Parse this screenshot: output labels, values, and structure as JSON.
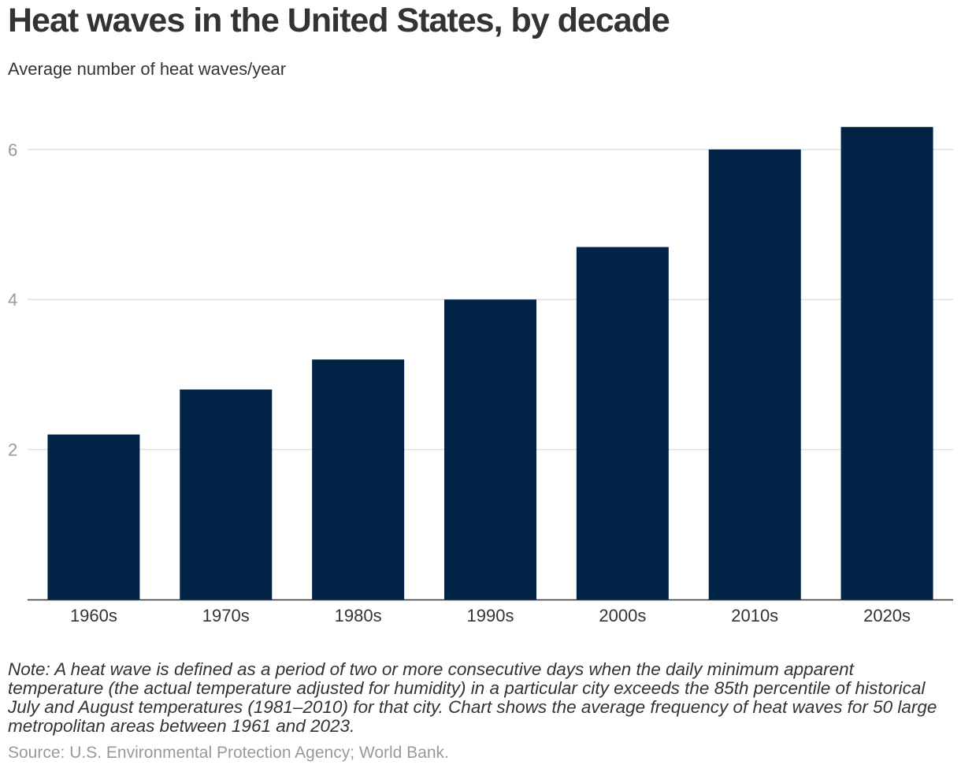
{
  "title": "Heat waves in the United States, by decade",
  "subtitle": "Average number of heat waves/year",
  "note": "Note: A heat wave is defined as a period of two or more consecutive days when the daily minimum apparent temperature (the actual temperature adjusted for humidity) in a particular city exceeds the 85th percentile of historical July and August temperatures (1981–2010) for that city. Chart shows the average frequency of heat waves for 50 large metropolitan areas between 1961 and 2023.",
  "source": "Source: U.S. Environmental Protection Agency; World Bank.",
  "colors": {
    "bar": "#002346",
    "grid": "#e0e0e0",
    "axis": "#333333",
    "tick_label": "#999999",
    "category_label": "#333333"
  },
  "chart_data": {
    "type": "bar",
    "categories": [
      "1960s",
      "1970s",
      "1980s",
      "1990s",
      "2000s",
      "2010s",
      "2020s"
    ],
    "values": [
      2.2,
      2.8,
      3.2,
      4.0,
      4.7,
      6.0,
      6.3
    ],
    "title": "Heat waves in the United States, by decade",
    "subtitle": "Average number of heat waves/year",
    "xlabel": "",
    "ylabel": "",
    "ylim": [
      0,
      6.6
    ],
    "yticks": [
      2,
      4,
      6
    ],
    "grid": true,
    "legend": "none"
  }
}
